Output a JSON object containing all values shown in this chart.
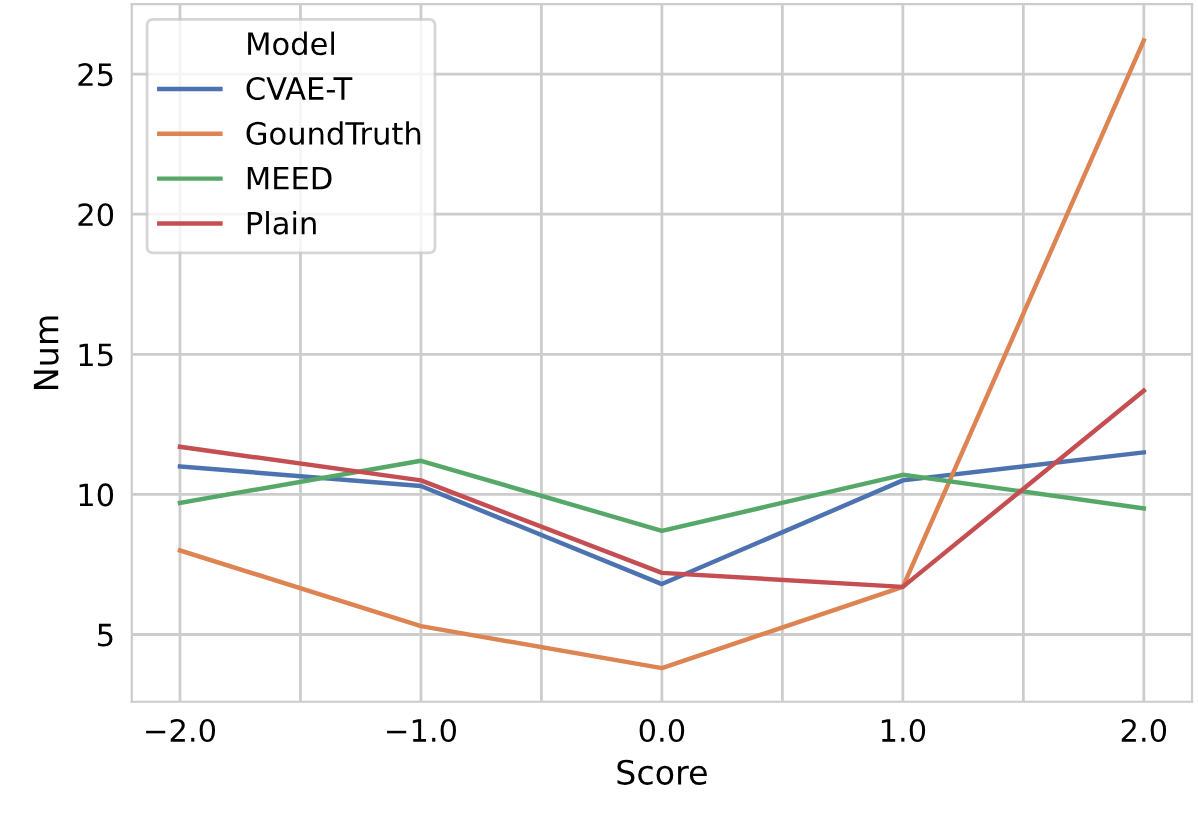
{
  "chart_data": {
    "type": "line",
    "xlabel": "Score",
    "ylabel": "Num",
    "legend_title": "Model",
    "legend": "top left",
    "grid": true,
    "x": [
      -2.0,
      -1.0,
      0.0,
      1.0,
      2.0
    ],
    "xlim": [
      -2.2,
      2.2
    ],
    "xticks": [
      {
        "value": -2.0,
        "label": "−2.0"
      },
      {
        "value": -1.5,
        "label": null
      },
      {
        "value": -1.0,
        "label": "−1.0"
      },
      {
        "value": -0.5,
        "label": null
      },
      {
        "value": 0.0,
        "label": "0.0"
      },
      {
        "value": 0.5,
        "label": null
      },
      {
        "value": 1.0,
        "label": "1.0"
      },
      {
        "value": 1.5,
        "label": null
      },
      {
        "value": 2.0,
        "label": "2.0"
      }
    ],
    "ylim": [
      2.6,
      27.5
    ],
    "yticks": [
      5,
      10,
      15,
      20,
      25
    ],
    "series": [
      {
        "name": "CVAE-T",
        "color": "#4c72b0",
        "values": [
          11.0,
          10.3,
          6.8,
          10.5,
          11.5
        ]
      },
      {
        "name": "GoundTruth",
        "color": "#dd8452",
        "values": [
          8.0,
          5.3,
          3.8,
          6.7,
          26.2
        ]
      },
      {
        "name": "MEED",
        "color": "#55a868",
        "values": [
          9.7,
          11.2,
          8.7,
          10.7,
          9.5
        ]
      },
      {
        "name": "Plain",
        "color": "#c44e52",
        "values": [
          11.7,
          10.5,
          7.2,
          6.7,
          13.7
        ]
      }
    ]
  }
}
